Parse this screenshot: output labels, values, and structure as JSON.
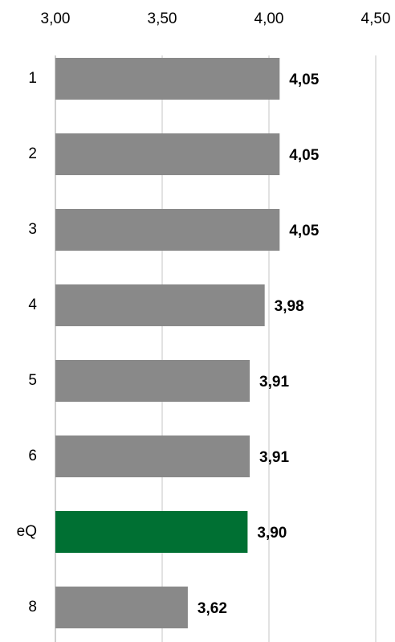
{
  "chart_data": {
    "type": "bar",
    "orientation": "horizontal",
    "categories": [
      "1",
      "2",
      "3",
      "4",
      "5",
      "6",
      "eQ",
      "8"
    ],
    "values": [
      4.05,
      4.05,
      4.05,
      3.98,
      3.91,
      3.91,
      3.9,
      3.62
    ],
    "value_labels": [
      "4,05",
      "4,05",
      "4,05",
      "3,98",
      "3,91",
      "3,91",
      "3,90",
      "3,62"
    ],
    "colors": [
      "#898989",
      "#898989",
      "#898989",
      "#898989",
      "#898989",
      "#898989",
      "#007033",
      "#898989"
    ],
    "xlim": [
      3,
      4.5
    ],
    "xticks": [
      {
        "value": 3,
        "label": "3,00"
      },
      {
        "value": 3.5,
        "label": "3,50"
      },
      {
        "value": 4,
        "label": "4,00"
      },
      {
        "value": 4.5,
        "label": "4,50"
      }
    ],
    "grid": true
  }
}
